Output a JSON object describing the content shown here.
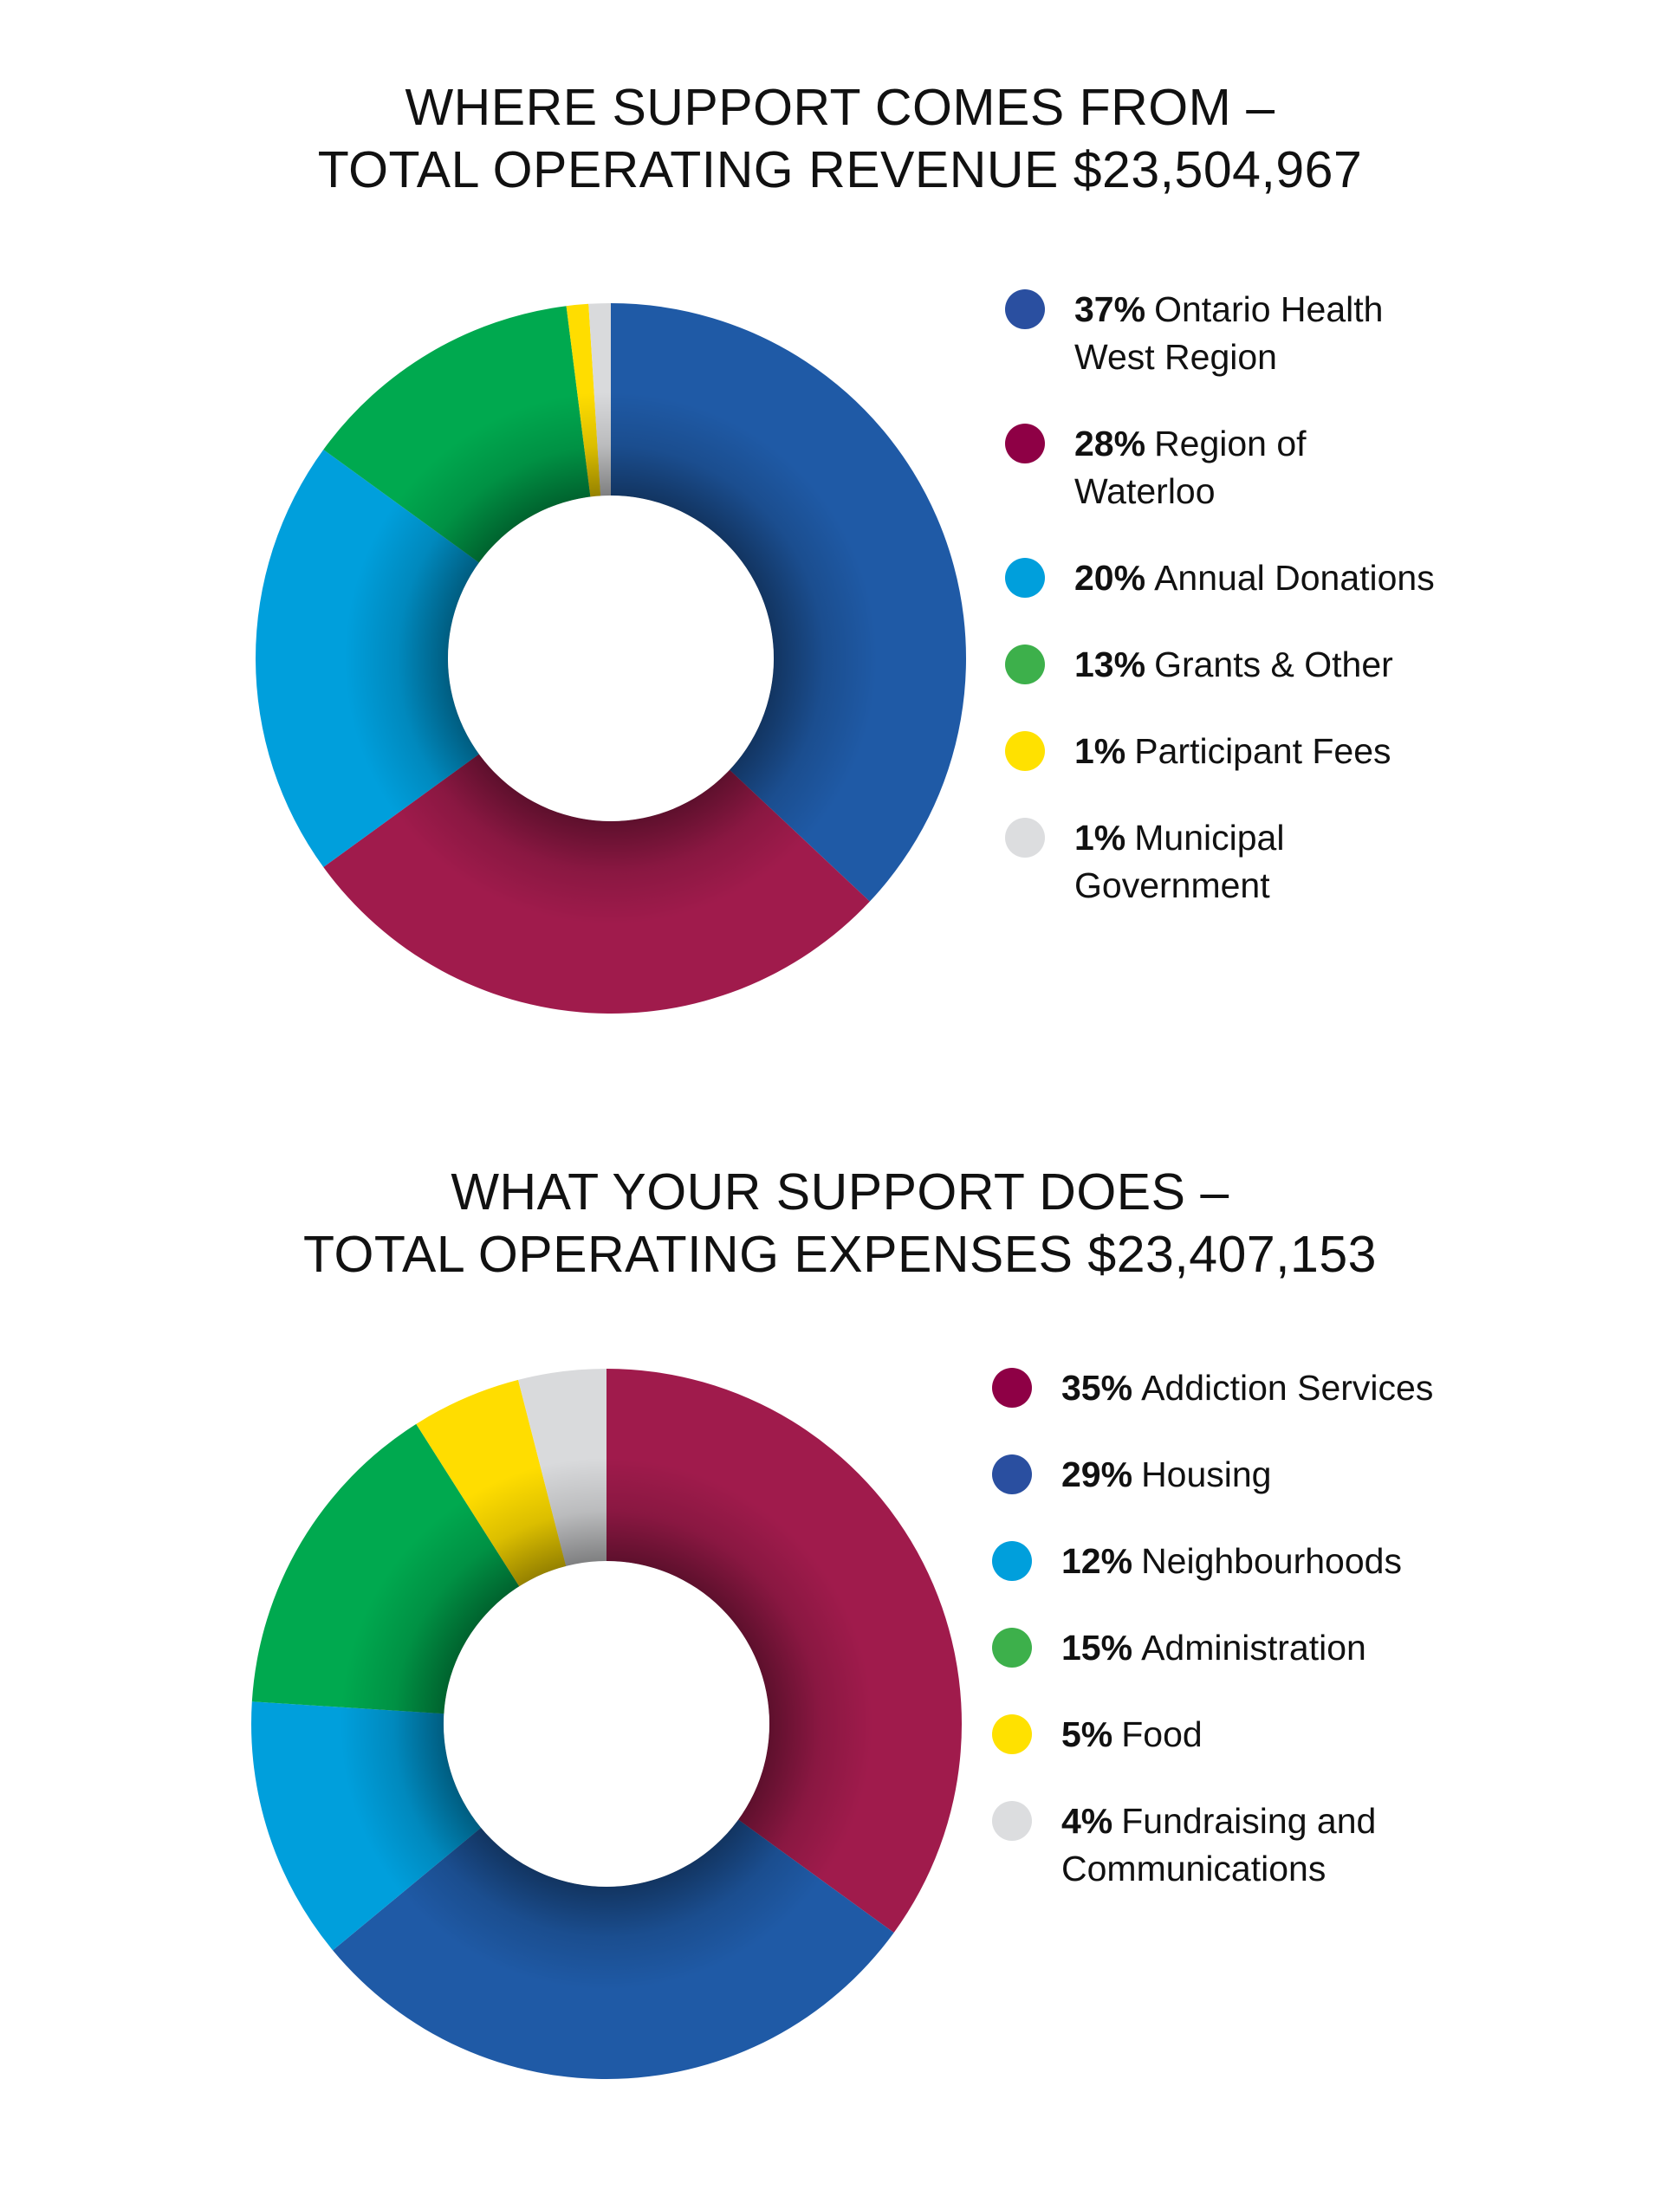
{
  "chart_data": [
    {
      "type": "pie",
      "title_lines": [
        "WHERE SUPPORT COMES FROM –",
        "TOTAL OPERATING REVENUE $23,504,967"
      ],
      "categories": [
        "Ontario Health West Region",
        "Region of Waterloo",
        "Annual Donations",
        "Grants & Other",
        "Participant Fees",
        "Municipal Government"
      ],
      "values": [
        37,
        28,
        20,
        13,
        1,
        1
      ],
      "value_labels": [
        "37%",
        "28%",
        "20%",
        "13%",
        "1%",
        "1%"
      ],
      "colors": [
        "#1f5aa6",
        "#a01b4c",
        "#009fdc",
        "#00a94f",
        "#ffdd00",
        "#d9dadc"
      ],
      "legend_dot_colors": [
        "#2a4fa0",
        "#8e0045",
        "#009fdc",
        "#3db04b",
        "#ffe100",
        "#dcdddf"
      ],
      "style": "donut",
      "legend_placement": "right",
      "start_angle_deg": 0,
      "direction": "clockwise"
    },
    {
      "type": "pie",
      "title_lines": [
        "WHAT YOUR SUPPORT DOES –",
        "TOTAL OPERATING EXPENSES $23,407,153"
      ],
      "categories": [
        "Addiction Services",
        "Housing",
        "Neighbourhoods",
        "Administration",
        "Food",
        "Fundraising and Communications"
      ],
      "values": [
        35,
        29,
        12,
        15,
        5,
        4
      ],
      "value_labels": [
        "35%",
        "29%",
        "12%",
        "15%",
        "5%",
        "4%"
      ],
      "colors": [
        "#a01b4c",
        "#1f5aa6",
        "#009fdc",
        "#00a94f",
        "#ffdd00",
        "#d9dadc"
      ],
      "legend_dot_colors": [
        "#8e0045",
        "#2a4fa0",
        "#009fdc",
        "#3db04b",
        "#ffe100",
        "#dcdddf"
      ],
      "style": "donut",
      "legend_placement": "right",
      "start_angle_deg": 0,
      "direction": "clockwise"
    }
  ]
}
